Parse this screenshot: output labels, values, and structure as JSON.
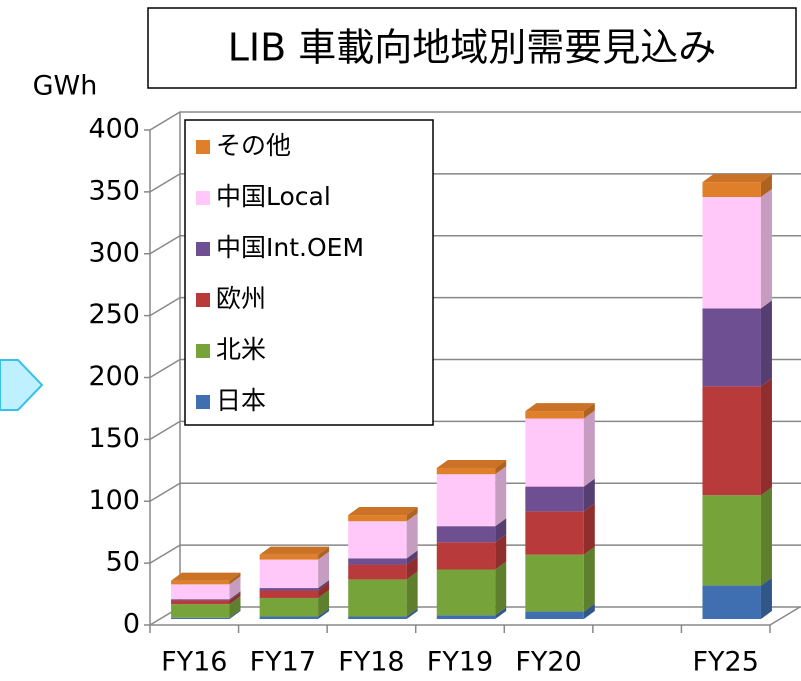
{
  "chart_data": {
    "type": "bar3d_stacked",
    "title": "LIB 車載向地域別需要見込み",
    "y_label": "GWh",
    "categories": [
      "FY16",
      "FY17",
      "FY18",
      "FY19",
      "FY20",
      null,
      "FY25"
    ],
    "series": [
      {
        "name": "日本",
        "color": "#3f6fb0",
        "values": [
          1,
          2,
          2,
          3,
          6,
          null,
          27
        ]
      },
      {
        "name": "北米",
        "color": "#77a33b",
        "values": [
          11,
          15,
          30,
          37,
          46,
          null,
          73
        ]
      },
      {
        "name": "欧州",
        "color": "#b83a3a",
        "values": [
          3,
          6,
          12,
          22,
          35,
          null,
          88
        ]
      },
      {
        "name": "中国Int.OEM",
        "color": "#6e4f91",
        "values": [
          1,
          2,
          5,
          13,
          20,
          null,
          63
        ]
      },
      {
        "name": "中国Local",
        "color": "#ffc8f8",
        "values": [
          12,
          23,
          30,
          42,
          55,
          null,
          90
        ]
      },
      {
        "name": "その他",
        "color": "#e07f2a",
        "values": [
          3,
          4,
          5,
          5,
          6,
          null,
          12
        ]
      }
    ],
    "ylim": [
      0,
      400
    ],
    "yticks": [
      0,
      50,
      100,
      150,
      200,
      250,
      300,
      350,
      400
    ],
    "grid": true,
    "legend": "upper left"
  }
}
